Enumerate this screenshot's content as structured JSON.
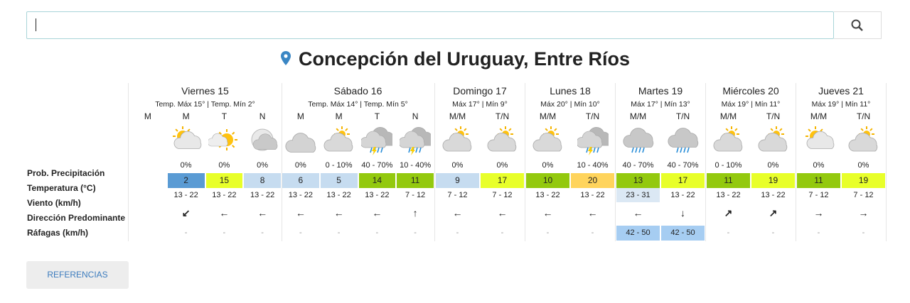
{
  "location": "Concepción del Uruguay, Entre Ríos",
  "search_button": "🔍",
  "row_labels": [
    "Prob. Precipitación",
    "Temperatura (°C)",
    "Viento (km/h)",
    "Dirección Predominante",
    "Ráfagas (km/h)"
  ],
  "days": [
    {
      "name": "Viernes 15",
      "summary": "Temp. Máx 15° | Temp. Mín 2°",
      "periods": [
        {
          "label": "M"
        },
        {
          "label": "M",
          "icon": "sun-cloud",
          "precip": "0%",
          "temp": 2,
          "temp_color": "#5a9bd4",
          "wind": "13 - 22",
          "direction": "↙",
          "gusts": "-"
        },
        {
          "label": "T",
          "icon": "sun",
          "precip": "0%",
          "temp": 15,
          "temp_color": "#e8ff2a",
          "wind": "13 - 22",
          "direction": "←",
          "gusts": "-"
        },
        {
          "label": "N",
          "icon": "moon-cloud",
          "precip": "0%",
          "temp": 8,
          "temp_color": "#c6dcf0",
          "wind": "13 - 22",
          "direction": "←",
          "gusts": "-"
        }
      ]
    },
    {
      "name": "Sábado 16",
      "summary": "Temp. Máx 14° | Temp. Mín 5°",
      "periods": [
        {
          "label": "M",
          "icon": "cloud",
          "precip": "0%",
          "temp": 6,
          "temp_color": "#c6dcf0",
          "wind": "13 - 22",
          "direction": "←",
          "gusts": "-"
        },
        {
          "label": "M",
          "icon": "partly",
          "precip": "0 - 10%",
          "temp": 5,
          "temp_color": "#c6dcf0",
          "wind": "13 - 22",
          "direction": "←",
          "gusts": "-"
        },
        {
          "label": "T",
          "icon": "storm",
          "precip": "40 - 70%",
          "temp": 14,
          "temp_color": "#93c90e",
          "wind": "13 - 22",
          "direction": "←",
          "gusts": "-"
        },
        {
          "label": "N",
          "icon": "storm",
          "precip": "10 - 40%",
          "temp": 11,
          "temp_color": "#93c90e",
          "wind": "7 - 12",
          "direction": "↑",
          "gusts": "-"
        }
      ]
    },
    {
      "name": "Domingo 17",
      "summary": "Máx 17° | Mín 9°",
      "periods": [
        {
          "label": "M/M",
          "icon": "partly",
          "precip": "0%",
          "temp": 9,
          "temp_color": "#c6dcf0",
          "wind": "7 - 12",
          "direction": "←",
          "gusts": "-"
        },
        {
          "label": "T/N",
          "icon": "partly",
          "precip": "0%",
          "temp": 17,
          "temp_color": "#e8ff2a",
          "wind": "7 - 12",
          "direction": "←",
          "gusts": "-"
        }
      ]
    },
    {
      "name": "Lunes 18",
      "summary": "Máx 20° | Mín 10°",
      "periods": [
        {
          "label": "M/M",
          "icon": "partly",
          "precip": "0%",
          "temp": 10,
          "temp_color": "#93c90e",
          "wind": "13 - 22",
          "direction": "←",
          "gusts": "-"
        },
        {
          "label": "T/N",
          "icon": "storm",
          "precip": "10 - 40%",
          "temp": 20,
          "temp_color": "#ffd45c",
          "wind": "13 - 22",
          "direction": "←",
          "gusts": "-"
        }
      ]
    },
    {
      "name": "Martes 19",
      "summary": "Máx 17° | Mín 13°",
      "periods": [
        {
          "label": "M/M",
          "icon": "rain",
          "precip": "40 - 70%",
          "temp": 13,
          "temp_color": "#93c90e",
          "wind": "23 - 31",
          "wind_color": "#dbe8f4",
          "direction": "←",
          "gusts": "42 - 50",
          "gusts_color": "#a6cdf2"
        },
        {
          "label": "T/N",
          "icon": "rain",
          "precip": "40 - 70%",
          "temp": 17,
          "temp_color": "#e8ff2a",
          "wind": "13 - 22",
          "direction": "↓",
          "gusts": "42 - 50",
          "gusts_color": "#a6cdf2"
        }
      ]
    },
    {
      "name": "Miércoles 20",
      "summary": "Máx 19° | Mín 11°",
      "periods": [
        {
          "label": "M/M",
          "icon": "partly",
          "precip": "0 - 10%",
          "temp": 11,
          "temp_color": "#93c90e",
          "wind": "13 - 22",
          "direction": "↗",
          "gusts": "-"
        },
        {
          "label": "T/N",
          "icon": "partly",
          "precip": "0%",
          "temp": 19,
          "temp_color": "#e8ff2a",
          "wind": "13 - 22",
          "direction": "↗",
          "gusts": "-"
        }
      ]
    },
    {
      "name": "Jueves 21",
      "summary": "Máx 19° | Mín 11°",
      "periods": [
        {
          "label": "M/M",
          "icon": "sun-cloud",
          "precip": "0%",
          "temp": 11,
          "temp_color": "#93c90e",
          "wind": "7 - 12",
          "direction": "→",
          "gusts": "-"
        },
        {
          "label": "T/N",
          "icon": "partly",
          "precip": "0%",
          "temp": 19,
          "temp_color": "#e8ff2a",
          "wind": "7 - 12",
          "direction": "→",
          "gusts": "-"
        }
      ]
    }
  ],
  "references_button": "REFERENCIAS"
}
